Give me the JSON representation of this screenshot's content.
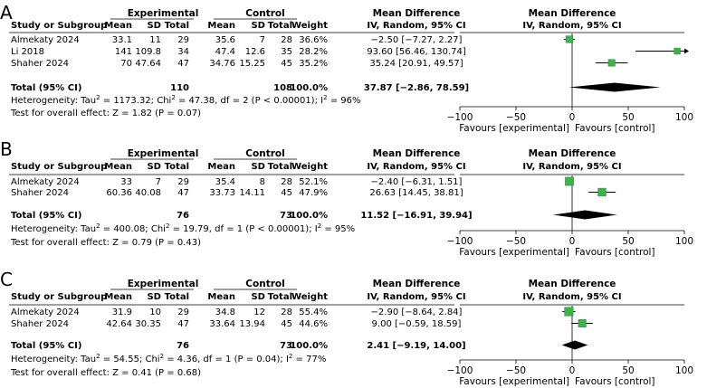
{
  "column_headers": {
    "group_experimental": "Experimental",
    "group_control": "Control",
    "study": "Study or Subgroup",
    "mean": "Mean",
    "sd": "SD",
    "total": "Total",
    "weight": "Weight",
    "md_title": "Mean Difference",
    "md_sub": "IV, Random, 95% CI"
  },
  "chart_data": [
    {
      "type": "forest",
      "panel_label": "A",
      "studies": [
        {
          "name": "Almekaty 2024",
          "exp_mean": "33.1",
          "exp_sd": "11",
          "exp_total": "29",
          "ctl_mean": "35.6",
          "ctl_sd": "7",
          "ctl_total": "28",
          "weight": "36.6%",
          "ci_text": "−2.50 [−7.27, 2.27]",
          "md": -2.5,
          "lo": -7.27,
          "hi": 2.27
        },
        {
          "name": "Li 2018",
          "exp_mean": "141",
          "exp_sd": "109.8",
          "exp_total": "34",
          "ctl_mean": "47.4",
          "ctl_sd": "12.6",
          "ctl_total": "35",
          "weight": "28.2%",
          "ci_text": "93.60 [56.46, 130.74]",
          "md": 93.6,
          "lo": 56.46,
          "hi": 130.74
        },
        {
          "name": "Shaher 2024",
          "exp_mean": "70",
          "exp_sd": "47.64",
          "exp_total": "47",
          "ctl_mean": "34.76",
          "ctl_sd": "15.25",
          "ctl_total": "45",
          "weight": "35.2%",
          "ci_text": "35.24 [20.91, 49.57]",
          "md": 35.24,
          "lo": 20.91,
          "hi": 49.57
        }
      ],
      "total": {
        "label": "Total (95% CI)",
        "exp_total": "110",
        "ctl_total": "108",
        "weight": "100.0%",
        "ci_text": "37.87 [−2.86, 78.59]",
        "md": 37.87,
        "lo": -2.86,
        "hi": 78.59
      },
      "heterogeneity": {
        "prefix": "Heterogeneity: Tau",
        "tau2": " = 1173.32; Chi",
        "chi2": " = 47.38, df = 2 (P < 0.00001); I",
        "i2": " = 96%"
      },
      "overall_effect": "Test for overall effect: Z = 1.82 (P = 0.07)",
      "xlim": [
        -100,
        100
      ],
      "ticks": [
        -100,
        -50,
        0,
        50,
        100
      ],
      "tick_labels": [
        "−100",
        "−50",
        "0",
        "50",
        "100"
      ],
      "favours_left": "Favours [experimental]",
      "favours_right": "Favours [control]"
    },
    {
      "type": "forest",
      "panel_label": "B",
      "studies": [
        {
          "name": "Almekaty 2024",
          "exp_mean": "33",
          "exp_sd": "7",
          "exp_total": "29",
          "ctl_mean": "35.4",
          "ctl_sd": "8",
          "ctl_total": "28",
          "weight": "52.1%",
          "ci_text": "−2.40 [−6.31, 1.51]",
          "md": -2.4,
          "lo": -6.31,
          "hi": 1.51
        },
        {
          "name": "Shaher 2024",
          "exp_mean": "60.36",
          "exp_sd": "40.08",
          "exp_total": "47",
          "ctl_mean": "33.73",
          "ctl_sd": "14.11",
          "ctl_total": "45",
          "weight": "47.9%",
          "ci_text": "26.63 [14.45, 38.81]",
          "md": 26.63,
          "lo": 14.45,
          "hi": 38.81
        }
      ],
      "total": {
        "label": "Total (95% CI)",
        "exp_total": "76",
        "ctl_total": "73",
        "weight": "100.0%",
        "ci_text": "11.52 [−16.91, 39.94]",
        "md": 11.52,
        "lo": -16.91,
        "hi": 39.94
      },
      "heterogeneity": {
        "prefix": "Heterogeneity: Tau",
        "tau2": " = 400.08; Chi",
        "chi2": " = 19.79, df = 1 (P < 0.00001); I",
        "i2": " = 95%"
      },
      "overall_effect": "Test for overall effect: Z = 0.79 (P = 0.43)",
      "xlim": [
        -100,
        100
      ],
      "ticks": [
        -100,
        -50,
        0,
        50,
        100
      ],
      "tick_labels": [
        "−100",
        "−50",
        "0",
        "50",
        "100"
      ],
      "favours_left": "Favours [experimental]",
      "favours_right": "Favours [control]"
    },
    {
      "type": "forest",
      "panel_label": "C",
      "studies": [
        {
          "name": "Almekaty 2024",
          "exp_mean": "31.9",
          "exp_sd": "10",
          "exp_total": "29",
          "ctl_mean": "34.8",
          "ctl_sd": "12",
          "ctl_total": "28",
          "weight": "55.4%",
          "ci_text": "−2.90 [−8.64, 2.84]",
          "md": -2.9,
          "lo": -8.64,
          "hi": 2.84
        },
        {
          "name": "Shaher 2024",
          "exp_mean": "42.64",
          "exp_sd": "30.35",
          "exp_total": "47",
          "ctl_mean": "33.64",
          "ctl_sd": "13.94",
          "ctl_total": "45",
          "weight": "44.6%",
          "ci_text": "9.00 [−0.59, 18.59]",
          "md": 9.0,
          "lo": -0.59,
          "hi": 18.59
        }
      ],
      "total": {
        "label": "Total (95% CI)",
        "exp_total": "76",
        "ctl_total": "73",
        "weight": "100.0%",
        "ci_text": "2.41 [−9.19, 14.00]",
        "md": 2.41,
        "lo": -9.19,
        "hi": 14.0
      },
      "heterogeneity": {
        "prefix": "Heterogeneity: Tau",
        "tau2": " = 54.55; Chi",
        "chi2": " = 4.36, df = 1 (P = 0.04); I",
        "i2": " = 77%"
      },
      "overall_effect": "Test for overall effect: Z = 0.41 (P = 0.68)",
      "xlim": [
        -100,
        100
      ],
      "ticks": [
        -100,
        -50,
        0,
        50,
        100
      ],
      "tick_labels": [
        "−100",
        "−50",
        "0",
        "50",
        "100"
      ],
      "favours_left": "Favours [experimental]",
      "favours_right": "Favours [control]"
    }
  ],
  "colors": {
    "marker": "#3cb44b",
    "marker_edge": "#2e8b3d",
    "line": "#000000"
  }
}
